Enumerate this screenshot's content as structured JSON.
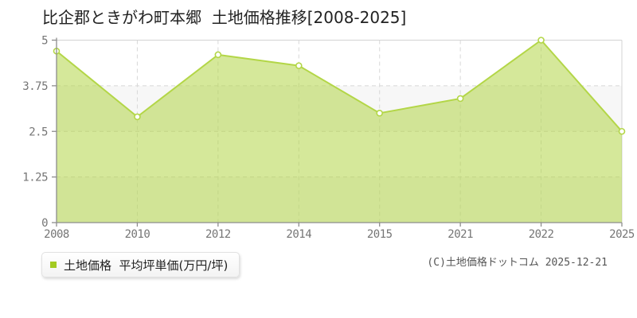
{
  "title": "比企郡ときがわ町本郷  土地価格推移[2008-2025]",
  "legend": {
    "label": "土地価格  平均坪単価(万円/坪)",
    "marker_color": "#a3cb21"
  },
  "footer": {
    "copyright": "(C)土地価格ドットコム 2025-12-21"
  },
  "chart_data": {
    "type": "area",
    "title": "比企郡ときがわ町本郷 土地価格推移[2008-2025]",
    "series_name": "土地価格",
    "categories": [
      "2008",
      "2010",
      "2012",
      "2014",
      "2015",
      "2021",
      "2022",
      "2025"
    ],
    "values": [
      4.7,
      2.9,
      4.6,
      4.3,
      3.0,
      3.4,
      5.0,
      2.5
    ],
    "xlabel": "",
    "ylabel": "平均坪単価(万円/坪)",
    "ylim": [
      0,
      5
    ],
    "yticks": [
      0,
      1.25,
      2.5,
      3.75,
      5
    ],
    "ytick_labels": [
      "0",
      "1.25",
      "2.5",
      "3.75",
      "5"
    ],
    "grid": "dashed",
    "legend_position": "bottom-left",
    "colors": {
      "line": "#b3d647",
      "fill": "rgba(179,214,71,0.55)",
      "marker_fill": "#ffffff",
      "band": "#f7f7f7",
      "gridline": "#d8d8d8",
      "plot_border": "#d3d3d3",
      "axis": "#8d8d8d"
    }
  }
}
